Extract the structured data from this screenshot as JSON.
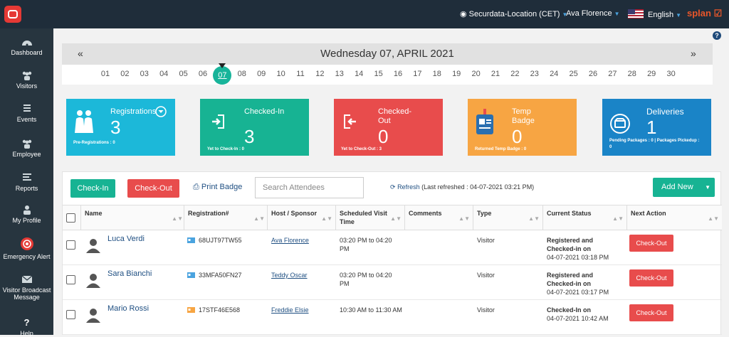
{
  "topbar": {
    "location": "Securdata-Location (CET)",
    "user": "Ava Florence",
    "language": "English",
    "brand": "splan"
  },
  "sidebar": {
    "items": [
      {
        "label": "Dashboard",
        "icon": "dashboard-icon"
      },
      {
        "label": "Visitors",
        "icon": "visitors-icon"
      },
      {
        "label": "Events",
        "icon": "events-icon"
      },
      {
        "label": "Employee",
        "icon": "employee-icon"
      },
      {
        "label": "Reports",
        "icon": "reports-icon"
      },
      {
        "label": "My Profile",
        "icon": "profile-icon"
      },
      {
        "label": "Emergency Alert",
        "icon": "emergency-alert-icon"
      },
      {
        "label": "Visitor Broadcast Message",
        "icon": "broadcast-envelope-icon"
      },
      {
        "label": "Help",
        "icon": "help-icon"
      }
    ]
  },
  "calendar": {
    "prev": "«",
    "next": "»",
    "title": "Wednesday 07, APRIL 2021",
    "days": [
      "01",
      "02",
      "03",
      "04",
      "05",
      "06",
      "07",
      "08",
      "09",
      "10",
      "11",
      "12",
      "13",
      "14",
      "15",
      "16",
      "17",
      "18",
      "19",
      "20",
      "21",
      "22",
      "23",
      "24",
      "25",
      "26",
      "27",
      "28",
      "29",
      "30"
    ],
    "selected": "07"
  },
  "cards": {
    "registrations": {
      "title": "Registrations",
      "count": "3",
      "sub": "Pre-Registrations : 0"
    },
    "checked_in": {
      "title": "Checked-In",
      "count": "3",
      "sub": "Yet to Check-In : 0"
    },
    "checked_out": {
      "title": "Checked-Out",
      "count": "0",
      "sub": "Yet to Check-Out : 3"
    },
    "temp_badge": {
      "title": "Temp Badge",
      "count": "0",
      "sub": "Returned Temp Badge : 0"
    },
    "deliveries": {
      "title": "Deliveries",
      "count": "1",
      "sub": "Pending Packages : 0 | Packages Pickedup : 0"
    }
  },
  "toolbar": {
    "checkin": "Check-In",
    "checkout": "Check-Out",
    "print_badge": "Print Badge",
    "search_placeholder": "Search Attendees",
    "refresh": "Refresh",
    "refresh_note": "(Last refreshed : 04-07-2021 03:21 PM)",
    "add_new": "Add New"
  },
  "table": {
    "headers": [
      "Name",
      "Registration#",
      "Host / Sponsor",
      "Scheduled Visit Time",
      "Comments",
      "Type",
      "Current Status",
      "Next Action"
    ],
    "rows": [
      {
        "name": "Luca Verdi",
        "reg": "68UJT97TW55",
        "host": "Ava Florence",
        "time": "03:20 PM to 04:20 PM",
        "comments": "",
        "type": "Visitor",
        "status": "Registered and Checked-in on",
        "status_time": "04-07-2021 03:18 PM",
        "action": "Check-Out"
      },
      {
        "name": "Sara Bianchi",
        "reg": "33MFA50FN27",
        "host": "Teddy Oscar",
        "time": "03:20 PM to 04:20 PM",
        "comments": "",
        "type": "Visitor",
        "status": "Registered and Checked-in on",
        "status_time": "04-07-2021 03:17 PM",
        "action": "Check-Out"
      },
      {
        "name": "Mario Rossi",
        "reg": "17STF46E568",
        "host": "Freddie Elsie",
        "time": "10:30 AM to 11:30 AM",
        "comments": "",
        "type": "Visitor",
        "status": "Checked-In on",
        "status_time": "04-07-2021 10:42 AM",
        "action": "Check-Out"
      }
    ]
  },
  "colors": {
    "accent_green": "#17b393",
    "accent_red": "#e84c4c",
    "topbar": "#1f2d3a",
    "sidebar": "#27353f"
  }
}
